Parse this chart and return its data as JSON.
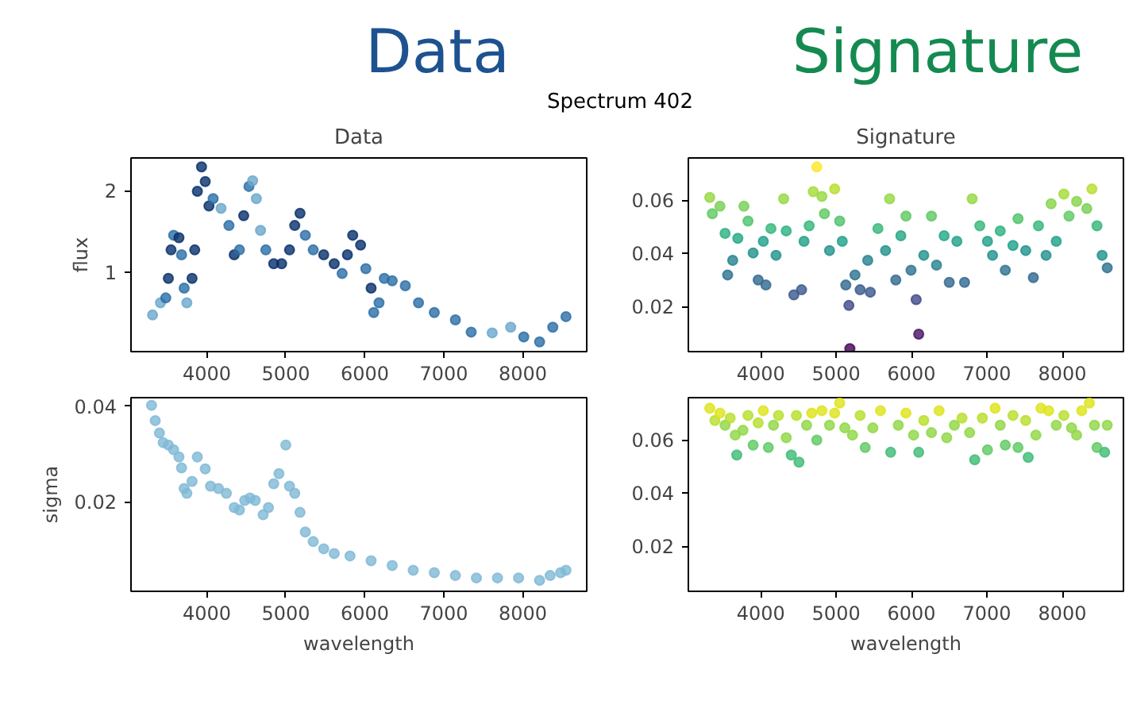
{
  "chart_data": [
    {
      "type": "other",
      "title": "Spectrum 402",
      "annotations": [
        "Data",
        "Signature"
      ],
      "colors": [
        "#1d5290",
        "#148a50"
      ]
    },
    {
      "type": "scatter",
      "title": "Data",
      "ylabel": "flux",
      "marker": "circle",
      "grid": false,
      "xlim": [
        3040,
        8810
      ],
      "ylim": [
        0.02,
        2.4
      ],
      "xticks": [
        4000,
        5000,
        6000,
        7000,
        8000
      ],
      "yticks": [
        1,
        2
      ],
      "x": [
        3313,
        3413,
        3480,
        3513,
        3547,
        3580,
        3647,
        3680,
        3713,
        3747,
        3813,
        3847,
        3880,
        3933,
        3980,
        4027,
        4080,
        4180,
        4280,
        4347,
        4413,
        4467,
        4533,
        4580,
        4627,
        4680,
        4747,
        4847,
        4947,
        5047,
        5113,
        5180,
        5247,
        5347,
        5480,
        5613,
        5713,
        5780,
        5847,
        5947,
        6013,
        6080,
        6113,
        6180,
        6247,
        6347,
        6513,
        6680,
        6880,
        7147,
        7347,
        7613,
        7847,
        8013,
        8213,
        8380,
        8547
      ],
      "values": [
        0.47,
        0.62,
        0.68,
        0.92,
        1.27,
        1.45,
        1.42,
        1.21,
        0.8,
        0.62,
        0.92,
        1.27,
        1.99,
        2.29,
        2.11,
        1.81,
        1.9,
        1.78,
        1.57,
        1.21,
        1.27,
        1.69,
        2.05,
        2.12,
        1.9,
        1.51,
        1.27,
        1.1,
        1.1,
        1.27,
        1.57,
        1.72,
        1.45,
        1.27,
        1.21,
        1.1,
        0.98,
        1.21,
        1.45,
        1.33,
        1.04,
        0.8,
        0.5,
        0.62,
        0.92,
        0.89,
        0.83,
        0.62,
        0.5,
        0.41,
        0.26,
        0.25,
        0.32,
        0.2,
        0.14,
        0.32,
        0.45
      ],
      "colors": [
        "#6aa8cc",
        "#6aa8cc",
        "#2b6ea6",
        "#08306b",
        "#08306b",
        "#2b6ea6",
        "#08306b",
        "#2b6ea6",
        "#2b6ea6",
        "#6aa8cc",
        "#08306b",
        "#08306b",
        "#08306b",
        "#08306b",
        "#08306b",
        "#08306b",
        "#2b6ea6",
        "#6aa8cc",
        "#2b6ea6",
        "#08306b",
        "#2b6ea6",
        "#08306b",
        "#2b6ea6",
        "#6aa8cc",
        "#6aa8cc",
        "#6aa8cc",
        "#2b6ea6",
        "#08306b",
        "#08306b",
        "#08306b",
        "#08306b",
        "#08306b",
        "#2b6ea6",
        "#2b6ea6",
        "#08306b",
        "#08306b",
        "#2b6ea6",
        "#08306b",
        "#08306b",
        "#08306b",
        "#2b6ea6",
        "#08306b",
        "#2b6ea6",
        "#2b6ea6",
        "#2b6ea6",
        "#2b6ea6",
        "#2b6ea6",
        "#2b6ea6",
        "#2b6ea6",
        "#2b6ea6",
        "#2b6ea6",
        "#6aa8cc",
        "#6aa8cc",
        "#2b6ea6",
        "#2b6ea6",
        "#2b6ea6",
        "#2b6ea6"
      ]
    },
    {
      "type": "scatter",
      "title": "Signature",
      "marker": "circle",
      "grid": false,
      "xlim": [
        3040,
        8810
      ],
      "ylim": [
        0.003,
        0.076
      ],
      "xticks": [
        4000,
        5000,
        6000,
        7000,
        8000
      ],
      "yticks": [
        {
          "value": 0.02,
          "label": "0.02"
        },
        {
          "value": 0.04,
          "label": "0.04"
        },
        {
          "value": 0.06,
          "label": "0.06"
        }
      ],
      "x": [
        3324,
        3358,
        3459,
        3527,
        3561,
        3628,
        3696,
        3777,
        3831,
        3899,
        3966,
        4034,
        4068,
        4135,
        4203,
        4304,
        4338,
        4439,
        4541,
        4574,
        4642,
        4696,
        4743,
        4811,
        4845,
        4912,
        4980,
        5047,
        5081,
        5128,
        5169,
        5182,
        5250,
        5318,
        5419,
        5453,
        5554,
        5655,
        5709,
        5791,
        5858,
        5926,
        5993,
        6061,
        6095,
        6162,
        6264,
        6331,
        6432,
        6500,
        6601,
        6703,
        6804,
        6905,
        7007,
        7074,
        7176,
        7243,
        7345,
        7412,
        7514,
        7615,
        7683,
        7784,
        7851,
        7919,
        8020,
        8088,
        8189,
        8324,
        8392,
        8459,
        8527,
        8595
      ],
      "values": [
        0.0611,
        0.055,
        0.0578,
        0.0476,
        0.0319,
        0.0374,
        0.0457,
        0.0578,
        0.0522,
        0.0402,
        0.03,
        0.0446,
        0.0281,
        0.0494,
        0.0393,
        0.0606,
        0.0485,
        0.0244,
        0.0263,
        0.0446,
        0.0504,
        0.0633,
        0.0726,
        0.0615,
        0.055,
        0.0411,
        0.0643,
        0.0522,
        0.0446,
        0.0281,
        0.0204,
        0.0041,
        0.0319,
        0.0263,
        0.0374,
        0.0254,
        0.0494,
        0.0411,
        0.0606,
        0.03,
        0.0467,
        0.0541,
        0.0337,
        0.0226,
        0.0096,
        0.0393,
        0.0541,
        0.0356,
        0.0467,
        0.0291,
        0.0446,
        0.0291,
        0.0606,
        0.0504,
        0.0446,
        0.0393,
        0.0485,
        0.0337,
        0.043,
        0.0531,
        0.0411,
        0.0309,
        0.0504,
        0.0393,
        0.0587,
        0.0446,
        0.0624,
        0.0541,
        0.0596,
        0.0569,
        0.0643,
        0.0504,
        0.0393,
        0.0346
      ],
      "colors": [
        "#95d840",
        "#5ec962",
        "#75d054",
        "#2ab07f",
        "#2c728e",
        "#26828e",
        "#22a884",
        "#75d054",
        "#4ec36b",
        "#21918c",
        "#31688e",
        "#1fa088",
        "#31688e",
        "#35b779",
        "#21918c",
        "#95d840",
        "#2ab07f",
        "#38598c",
        "#38598c",
        "#1fa088",
        "#35b779",
        "#a5db36",
        "#fde725",
        "#95d840",
        "#5ec962",
        "#21918c",
        "#b5de2b",
        "#4ec36b",
        "#1fa088",
        "#31688e",
        "#3e4989",
        "#440154",
        "#2c728e",
        "#38598c",
        "#26828e",
        "#38598c",
        "#35b779",
        "#21918c",
        "#95d840",
        "#31688e",
        "#22a884",
        "#5ec962",
        "#2c728e",
        "#3e4989",
        "#471365",
        "#21918c",
        "#5ec962",
        "#26828e",
        "#22a884",
        "#31688e",
        "#1fa088",
        "#31688e",
        "#95d840",
        "#35b779",
        "#1fa088",
        "#21918c",
        "#2ab07f",
        "#2c728e",
        "#1fa088",
        "#4ec36b",
        "#21918c",
        "#31688e",
        "#35b779",
        "#21918c",
        "#86d549",
        "#1fa088",
        "#a5db36",
        "#5ec962",
        "#86d549",
        "#75d054",
        "#b5de2b",
        "#35b779",
        "#21918c",
        "#2c728e"
      ]
    },
    {
      "type": "scatter",
      "xlabel": "wavelength",
      "ylabel": "sigma",
      "marker": "circle",
      "grid": false,
      "xlim": [
        3040,
        8810
      ],
      "ylim": [
        0.0013,
        0.0418
      ],
      "xticks": [
        4000,
        5000,
        6000,
        7000,
        8000
      ],
      "yticks": [
        {
          "value": 0.02,
          "label": "0.02"
        },
        {
          "value": 0.04,
          "label": "0.04"
        }
      ],
      "color": "#7fb9d6",
      "x": [
        3300,
        3347,
        3400,
        3447,
        3513,
        3580,
        3647,
        3680,
        3713,
        3747,
        3813,
        3880,
        3980,
        4047,
        4147,
        4247,
        4347,
        4413,
        4480,
        4547,
        4613,
        4713,
        4780,
        4847,
        4913,
        5000,
        5047,
        5113,
        5180,
        5247,
        5347,
        5480,
        5613,
        5813,
        6080,
        6347,
        6613,
        6880,
        7147,
        7413,
        7680,
        7947,
        8213,
        8347,
        8480,
        8547
      ],
      "values": [
        0.0402,
        0.037,
        0.0344,
        0.0324,
        0.0319,
        0.0309,
        0.0294,
        0.0271,
        0.0228,
        0.0218,
        0.0243,
        0.0294,
        0.0269,
        0.0233,
        0.0228,
        0.0218,
        0.0188,
        0.0183,
        0.0203,
        0.0208,
        0.0203,
        0.0173,
        0.0188,
        0.0238,
        0.0259,
        0.0319,
        0.0233,
        0.0218,
        0.0178,
        0.0137,
        0.0117,
        0.0102,
        0.0092,
        0.0087,
        0.0077,
        0.0067,
        0.0057,
        0.0052,
        0.0046,
        0.0041,
        0.0041,
        0.0041,
        0.0036,
        0.0046,
        0.0052,
        0.0057
      ]
    },
    {
      "type": "scatter",
      "xlabel": "wavelength",
      "marker": "circle",
      "grid": false,
      "xlim": [
        3040,
        8810
      ],
      "ylim": [
        0.003,
        0.076
      ],
      "xticks": [
        4000,
        5000,
        6000,
        7000,
        8000
      ],
      "yticks": [
        {
          "value": 0.02,
          "label": "0.02"
        },
        {
          "value": 0.04,
          "label": "0.04"
        },
        {
          "value": 0.06,
          "label": "0.06"
        }
      ],
      "x": [
        3324,
        3392,
        3459,
        3527,
        3595,
        3662,
        3682,
        3764,
        3831,
        3899,
        3966,
        4034,
        4101,
        4169,
        4236,
        4338,
        4405,
        4473,
        4507,
        4608,
        4676,
        4743,
        4811,
        4912,
        4980,
        5047,
        5115,
        5216,
        5318,
        5385,
        5487,
        5588,
        5723,
        5824,
        5926,
        6027,
        6095,
        6162,
        6264,
        6365,
        6466,
        6568,
        6669,
        6770,
        6838,
        6939,
        7007,
        7108,
        7176,
        7243,
        7345,
        7412,
        7514,
        7547,
        7649,
        7716,
        7818,
        7919,
        8020,
        8122,
        8189,
        8257,
        8358,
        8426,
        8459,
        8561,
        8595
      ],
      "values": [
        0.072,
        0.0674,
        0.0702,
        0.0656,
        0.0683,
        0.0619,
        0.0544,
        0.0637,
        0.0693,
        0.0581,
        0.0665,
        0.0711,
        0.0572,
        0.0656,
        0.0693,
        0.0609,
        0.0544,
        0.0693,
        0.0517,
        0.0656,
        0.0702,
        0.06,
        0.0711,
        0.0656,
        0.0702,
        0.074,
        0.0646,
        0.0619,
        0.0693,
        0.0572,
        0.0646,
        0.0711,
        0.0554,
        0.0656,
        0.0702,
        0.0619,
        0.0554,
        0.0674,
        0.0628,
        0.0711,
        0.0609,
        0.0656,
        0.0683,
        0.0628,
        0.0526,
        0.0683,
        0.0563,
        0.072,
        0.0656,
        0.0581,
        0.0693,
        0.0572,
        0.0674,
        0.0535,
        0.0619,
        0.072,
        0.0711,
        0.0656,
        0.0693,
        0.0646,
        0.0619,
        0.0711,
        0.074,
        0.0656,
        0.0572,
        0.0554,
        0.0656
      ],
      "colors": [
        "#dde318",
        "#b8de29",
        "#dde318",
        "#8fd744",
        "#b8de29",
        "#8fd744",
        "#3dbc74",
        "#8fd744",
        "#b8de29",
        "#5ec962",
        "#b8de29",
        "#dde318",
        "#5ec962",
        "#8fd744",
        "#b8de29",
        "#8fd744",
        "#3dbc74",
        "#b8de29",
        "#3dbc74",
        "#8fd744",
        "#dde318",
        "#5ec962",
        "#dde318",
        "#8fd744",
        "#dde318",
        "#dde318",
        "#8fd744",
        "#8fd744",
        "#b8de29",
        "#5ec962",
        "#8fd744",
        "#dde318",
        "#3dbc74",
        "#8fd744",
        "#dde318",
        "#8fd744",
        "#3dbc74",
        "#b8de29",
        "#8fd744",
        "#dde318",
        "#8fd744",
        "#8fd744",
        "#b8de29",
        "#8fd744",
        "#3dbc74",
        "#b8de29",
        "#5ec962",
        "#dde318",
        "#8fd744",
        "#5ec962",
        "#b8de29",
        "#5ec962",
        "#b8de29",
        "#3dbc74",
        "#8fd744",
        "#dde318",
        "#dde318",
        "#8fd744",
        "#b8de29",
        "#8fd744",
        "#8fd744",
        "#dde318",
        "#dde318",
        "#8fd744",
        "#5ec962",
        "#3dbc74",
        "#8fd744"
      ]
    }
  ]
}
